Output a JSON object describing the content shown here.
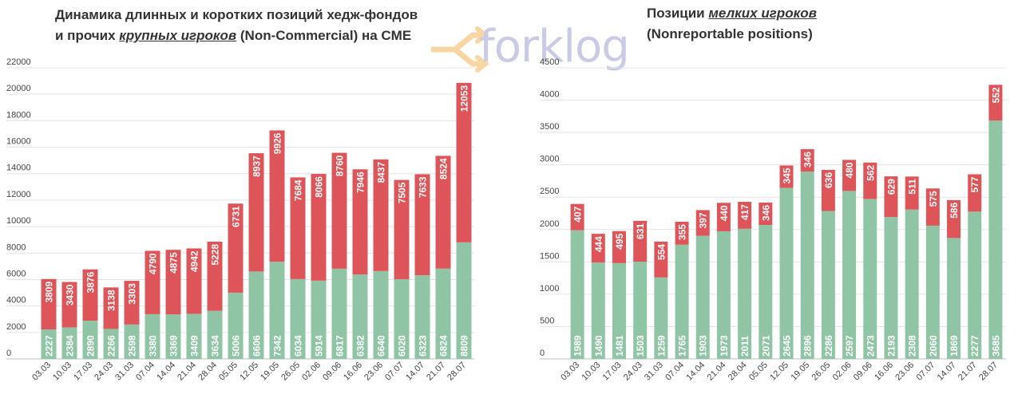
{
  "titles": {
    "left_line1": "Динамика длинных и коротких позиций хедж-фондов",
    "left_line2_pre": "и прочих ",
    "left_line2_em": "крупных игроков",
    "left_line2_post": " (Non-Commercial) на CME",
    "right_line1_pre": "Позиции ",
    "right_line1_em": "мелких игроков",
    "right_line2": "(Nonreportable positions)"
  },
  "logo": {
    "text": "forklog",
    "color": "#c9cbe6",
    "arrow_color": "#f2b65a"
  },
  "colors": {
    "long": "#8fc4a5",
    "short": "#de5559"
  },
  "chart_data": [
    {
      "type": "bar",
      "stacked": true,
      "title": "Динамика длинных и коротких позиций хедж-фондов и прочих крупных игроков (Non-Commercial) на CME",
      "categories": [
        "03.03",
        "10.03",
        "17.03",
        "24.03",
        "31.03",
        "07.04",
        "14.04",
        "21.04",
        "28.04",
        "05.05",
        "12.05",
        "19.05",
        "26.05",
        "02.06",
        "09.06",
        "16.06",
        "23.06",
        "07.07",
        "14.07",
        "21.07",
        "28.07"
      ],
      "series": [
        {
          "values": [
            2227,
            2384,
            2890,
            2266,
            2598,
            3380,
            3369,
            3409,
            3634,
            5006,
            6606,
            7342,
            6034,
            5914,
            6817,
            6382,
            6640,
            6020,
            6323,
            6824,
            8809
          ]
        },
        {
          "values": [
            3809,
            3430,
            3876,
            3138,
            3303,
            4790,
            4875,
            4942,
            5228,
            6731,
            8937,
            9926,
            7684,
            8066,
            8760,
            7946,
            8437,
            7505,
            7633,
            8524,
            12053
          ]
        }
      ],
      "ylim": [
        0,
        22000
      ],
      "yticks": [
        0,
        2000,
        4000,
        6000,
        8000,
        10000,
        12000,
        14000,
        16000,
        18000,
        20000,
        22000
      ],
      "grid": true,
      "xlabel": "",
      "ylabel": ""
    },
    {
      "type": "bar",
      "stacked": true,
      "title": "Позиции мелких игроков (Nonreportable positions)",
      "categories": [
        "03.03",
        "10.03",
        "17.03",
        "24.03",
        "31.03",
        "07.04",
        "14.04",
        "21.04",
        "28.04",
        "05.05",
        "12.05",
        "19.05",
        "26.05",
        "02.06",
        "09.06",
        "16.06",
        "23.06",
        "07.07",
        "14.07",
        "21.07",
        "28.07"
      ],
      "series": [
        {
          "values": [
            1989,
            1490,
            1481,
            1503,
            1259,
            1765,
            1903,
            1973,
            2011,
            2071,
            2645,
            2896,
            2286,
            2597,
            2473,
            2193,
            2308,
            2060,
            1869,
            2277,
            3685
          ]
        },
        {
          "values": [
            407,
            444,
            495,
            631,
            554,
            355,
            397,
            440,
            417,
            346,
            345,
            346,
            636,
            480,
            562,
            629,
            511,
            575,
            586,
            577,
            552
          ]
        }
      ],
      "ylim": [
        0,
        4500
      ],
      "yticks": [
        0,
        500,
        1000,
        1500,
        2000,
        2500,
        3000,
        3500,
        4000,
        4500
      ],
      "grid": true,
      "xlabel": "",
      "ylabel": ""
    }
  ]
}
